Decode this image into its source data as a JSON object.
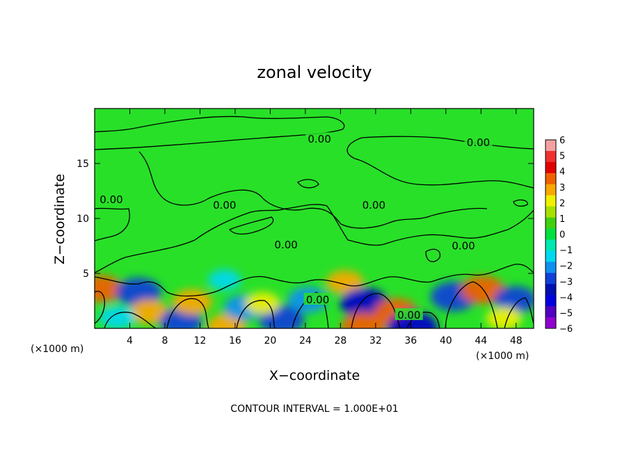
{
  "chart_data": {
    "type": "heatmap",
    "title": "zonal velocity",
    "xlabel": "X−coordinate",
    "ylabel": "Z−coordinate",
    "x_unit": "(×1000 m)",
    "y_unit": "(×1000 m)",
    "xlim": [
      0,
      50
    ],
    "ylim": [
      0,
      20
    ],
    "x_ticks": [
      4,
      8,
      12,
      16,
      20,
      24,
      28,
      32,
      36,
      40,
      44,
      48
    ],
    "y_ticks": [
      5,
      10,
      15
    ],
    "colorbar": {
      "ticks": [
        "6",
        "5",
        "4",
        "3",
        "2",
        "1",
        "0",
        "−1",
        "−2",
        "−3",
        "−4",
        "−5",
        "−6"
      ],
      "colors": [
        "#f5a0a0",
        "#f03030",
        "#e00000",
        "#f06000",
        "#f8a800",
        "#f0f000",
        "#a8e000",
        "#40d010",
        "#00e040",
        "#00e8b0",
        "#00d8f0",
        "#1090f0",
        "#1040d8",
        "#0010b0",
        "#0000e0",
        "#5000c0",
        "#9000d0"
      ]
    },
    "contour_labels": [
      {
        "text": "0.00",
        "x": 25.6,
        "z": 17.2
      },
      {
        "text": "0.00",
        "x": 43.7,
        "z": 16.9
      },
      {
        "text": "0.00",
        "x": 1.9,
        "z": 11.7
      },
      {
        "text": "0.00",
        "x": 14.8,
        "z": 11.2
      },
      {
        "text": "0.00",
        "x": 31.8,
        "z": 11.2
      },
      {
        "text": "0.00",
        "x": 21.8,
        "z": 7.6
      },
      {
        "text": "0.00",
        "x": 42.0,
        "z": 7.5
      },
      {
        "text": "0.00",
        "x": 25.4,
        "z": 2.6
      },
      {
        "text": "0.00",
        "x": 35.8,
        "z": 1.2
      }
    ],
    "field_anomalies": [
      {
        "x": 0.8,
        "z": 3.6,
        "v": 3.5
      },
      {
        "x": 5.0,
        "z": 3.3,
        "v": -4.0
      },
      {
        "x": 6.2,
        "z": 1.5,
        "v": 2.8
      },
      {
        "x": 9.8,
        "z": 0.6,
        "v": -3.5
      },
      {
        "x": 11.1,
        "z": 2.4,
        "v": 3.0
      },
      {
        "x": 15.0,
        "z": 0.2,
        "v": 2.8
      },
      {
        "x": 17.0,
        "z": 1.9,
        "v": -3.0
      },
      {
        "x": 21.3,
        "z": 0.8,
        "v": -4.0
      },
      {
        "x": 24.3,
        "z": 2.6,
        "v": -3.0
      },
      {
        "x": 28.5,
        "z": 4.2,
        "v": 2.5
      },
      {
        "x": 30.7,
        "z": 2.3,
        "v": -4.5
      },
      {
        "x": 30.6,
        "z": 0.2,
        "v": 3.8
      },
      {
        "x": 34.3,
        "z": 1.5,
        "v": 3.6
      },
      {
        "x": 36.2,
        "z": 0.1,
        "v": -5.0
      },
      {
        "x": 40.9,
        "z": 2.9,
        "v": -4.2
      },
      {
        "x": 44.2,
        "z": 3.5,
        "v": 3.8
      },
      {
        "x": 47.9,
        "z": 2.6,
        "v": -3.5
      },
      {
        "x": 46.6,
        "z": 0.9,
        "v": 2.2
      },
      {
        "x": 19.1,
        "z": 2.3,
        "v": 2.0
      },
      {
        "x": 14.8,
        "z": 4.4,
        "v": -1.6
      },
      {
        "x": 2.6,
        "z": 1.0,
        "v": -2.3
      }
    ],
    "footer": "CONTOUR INTERVAL = 1.000E+01"
  }
}
